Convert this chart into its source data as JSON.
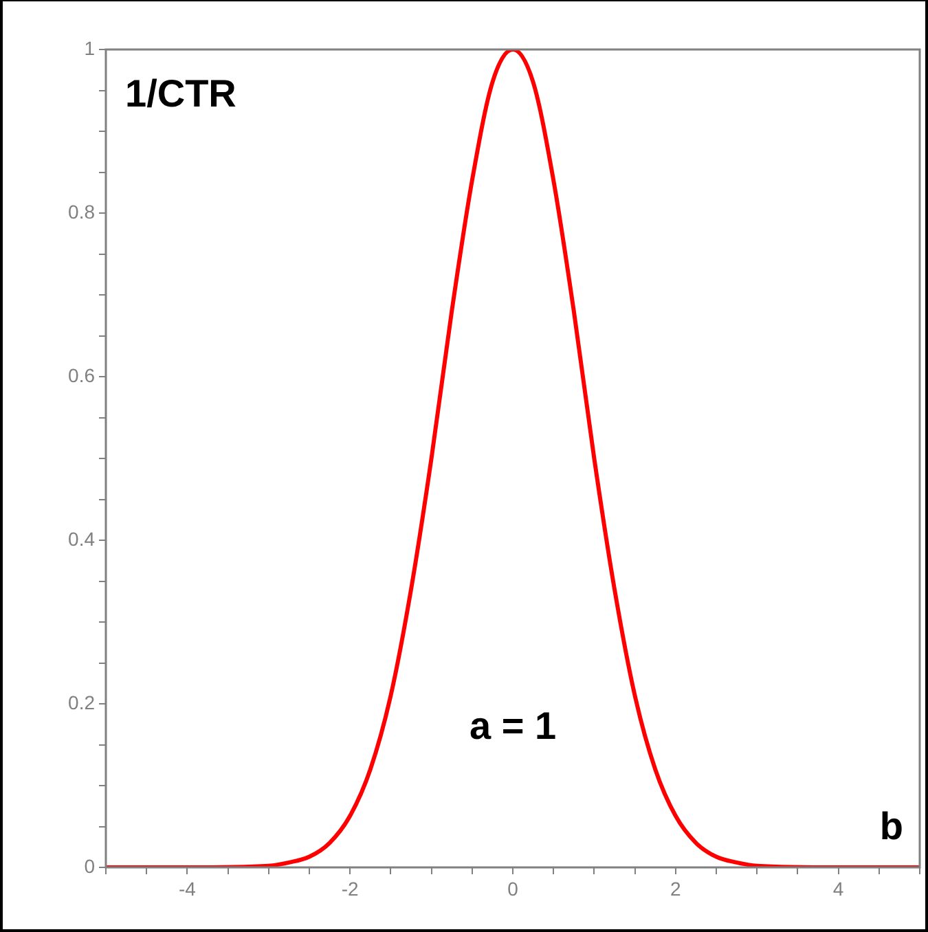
{
  "chart_data": {
    "type": "line",
    "x": [
      -5,
      -4,
      -3,
      -2.75,
      -2.5,
      -2.25,
      -2,
      -1.75,
      -1.5,
      -1.25,
      -1,
      -0.75,
      -0.5,
      -0.25,
      0,
      0.25,
      0.5,
      0.75,
      1,
      1.25,
      1.5,
      1.75,
      2,
      2.25,
      2.5,
      2.75,
      3,
      4,
      5
    ],
    "series": [
      {
        "color": "#ff0000",
        "values": [
          0,
          0,
          0.002,
          0.006,
          0.013,
          0.03,
          0.063,
          0.12,
          0.21,
          0.34,
          0.5,
          0.68,
          0.84,
          0.96,
          1,
          0.96,
          0.84,
          0.68,
          0.5,
          0.34,
          0.21,
          0.12,
          0.063,
          0.03,
          0.013,
          0.006,
          0.002,
          0,
          0
        ]
      }
    ],
    "xlabel": "b",
    "ylabel": "1/CTR",
    "annotations": [
      "a = 1"
    ],
    "xlim": [
      -5,
      5
    ],
    "ylim": [
      0,
      1
    ],
    "xticks": [
      {
        "value": -5,
        "label": null
      },
      {
        "value": -4.5,
        "label": null
      },
      -4,
      {
        "value": -3.5,
        "label": null
      },
      {
        "value": -3,
        "label": null
      },
      {
        "value": -2.5,
        "label": null
      },
      -2,
      {
        "value": -1.5,
        "label": null
      },
      {
        "value": -1,
        "label": null
      },
      {
        "value": -0.5,
        "label": null
      },
      0,
      {
        "value": 0.5,
        "label": null
      },
      {
        "value": 1,
        "label": null
      },
      {
        "value": 1.5,
        "label": null
      },
      2,
      {
        "value": 2.5,
        "label": null
      },
      {
        "value": 3,
        "label": null
      },
      {
        "value": 3.5,
        "label": null
      },
      4,
      {
        "value": 4.5,
        "label": null
      },
      {
        "value": 5,
        "label": null
      }
    ],
    "yticks": [
      0,
      {
        "value": 0.05,
        "label": null
      },
      {
        "value": 0.1,
        "label": null
      },
      {
        "value": 0.15,
        "label": null
      },
      0.2,
      {
        "value": 0.25,
        "label": null
      },
      {
        "value": 0.3,
        "label": null
      },
      {
        "value": 0.35,
        "label": null
      },
      0.4,
      {
        "value": 0.45,
        "label": null
      },
      {
        "value": 0.5,
        "label": null
      },
      {
        "value": 0.55,
        "label": null
      },
      0.6,
      {
        "value": 0.65,
        "label": null
      },
      {
        "value": 0.7,
        "label": null
      },
      {
        "value": 0.75,
        "label": null
      },
      0.8,
      {
        "value": 0.85,
        "label": null
      },
      {
        "value": 0.9,
        "label": null
      },
      {
        "value": 0.95,
        "label": null
      },
      1
    ],
    "grid": false,
    "legend": false,
    "marker": "none",
    "line_style": "solid"
  }
}
